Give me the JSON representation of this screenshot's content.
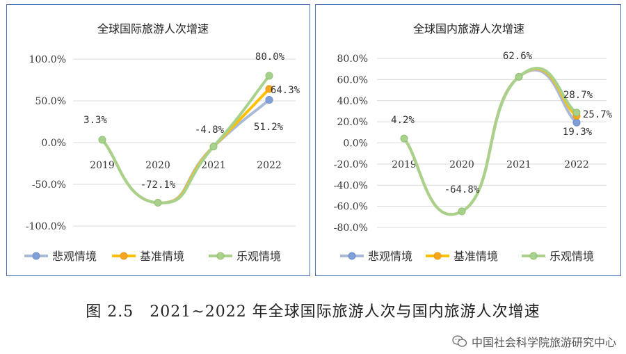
{
  "caption": "图 2.5　2021~2022 年全球国际旅游人次与国内旅游人次增速",
  "watermark": "中国社会科学院旅游研究中心",
  "colors": {
    "pessimistic": "#a9b9d6",
    "baseline": "#ffc000",
    "optimistic": "#a9d18e",
    "marker_pess": "#7f9fd6",
    "marker_base": "#f5a623",
    "border": "#4a72b8"
  },
  "chart_data": [
    {
      "type": "line",
      "title": "全球国际旅游人次增速",
      "categories": [
        "2019",
        "2020",
        "2021",
        "2022"
      ],
      "ylim": [
        -100,
        100
      ],
      "yticks": [
        -100,
        -50,
        0,
        50,
        100
      ],
      "ytick_labels": [
        "-100.0%",
        "-50.0%",
        "0.0%",
        "50.0%",
        "100.0%"
      ],
      "series": [
        {
          "name": "悲观情境",
          "values": [
            3.3,
            -72.1,
            -4.8,
            51.2
          ]
        },
        {
          "name": "基准情境",
          "values": [
            3.3,
            -72.1,
            -4.8,
            64.3
          ]
        },
        {
          "name": "乐观情境",
          "values": [
            3.3,
            -72.1,
            -4.8,
            80.0
          ]
        }
      ],
      "data_labels": [
        {
          "text": "3.3%"
        },
        {
          "text": "-72.1%"
        },
        {
          "text": "-4.8%"
        },
        {
          "text": "51.2%"
        },
        {
          "text": "64.3%"
        },
        {
          "text": "80.0%"
        }
      ],
      "legend": "bottom"
    },
    {
      "type": "line",
      "title": "全球国内旅游人次增速",
      "categories": [
        "2019",
        "2020",
        "2021",
        "2022"
      ],
      "ylim": [
        -80,
        80
      ],
      "yticks": [
        -80,
        -60,
        -40,
        -20,
        0,
        20,
        40,
        60,
        80
      ],
      "ytick_labels": [
        "-80.0%",
        "-60.0%",
        "-40.0%",
        "-20.0%",
        "0.0%",
        "20.0%",
        "40.0%",
        "60.0%",
        "80.0%"
      ],
      "series": [
        {
          "name": "悲观情境",
          "values": [
            4.2,
            -64.8,
            62.6,
            19.3
          ]
        },
        {
          "name": "基准情境",
          "values": [
            4.2,
            -64.8,
            62.6,
            25.7
          ]
        },
        {
          "name": "乐观情境",
          "values": [
            4.2,
            -64.8,
            62.6,
            28.7
          ]
        }
      ],
      "data_labels": [
        {
          "text": "4.2%"
        },
        {
          "text": "-64.8%"
        },
        {
          "text": "62.6%"
        },
        {
          "text": "19.3%"
        },
        {
          "text": "25.7%"
        },
        {
          "text": "28.7%"
        }
      ],
      "legend": "bottom"
    }
  ]
}
